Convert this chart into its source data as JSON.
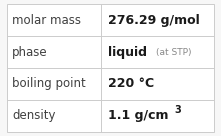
{
  "rows": [
    {
      "label": "molar mass",
      "value": "276.29 g/mol",
      "type": "plain"
    },
    {
      "label": "phase",
      "value": "liquid",
      "suffix": " (at STP)",
      "type": "phase"
    },
    {
      "label": "boiling point",
      "value": "220 °C",
      "type": "plain"
    },
    {
      "label": "density",
      "value": "1.1 g/cm",
      "superscript": "3",
      "type": "density"
    }
  ],
  "n_rows": 4,
  "bg_color": "#f7f7f7",
  "cell_bg": "#ffffff",
  "border_color": "#cccccc",
  "label_color": "#404040",
  "value_color": "#1a1a1a",
  "suffix_color": "#888888",
  "label_fontsize": 8.5,
  "value_fontsize": 9.0,
  "suffix_fontsize": 6.5,
  "col_split": 0.455,
  "figwidth": 2.21,
  "figheight": 1.36,
  "dpi": 100
}
